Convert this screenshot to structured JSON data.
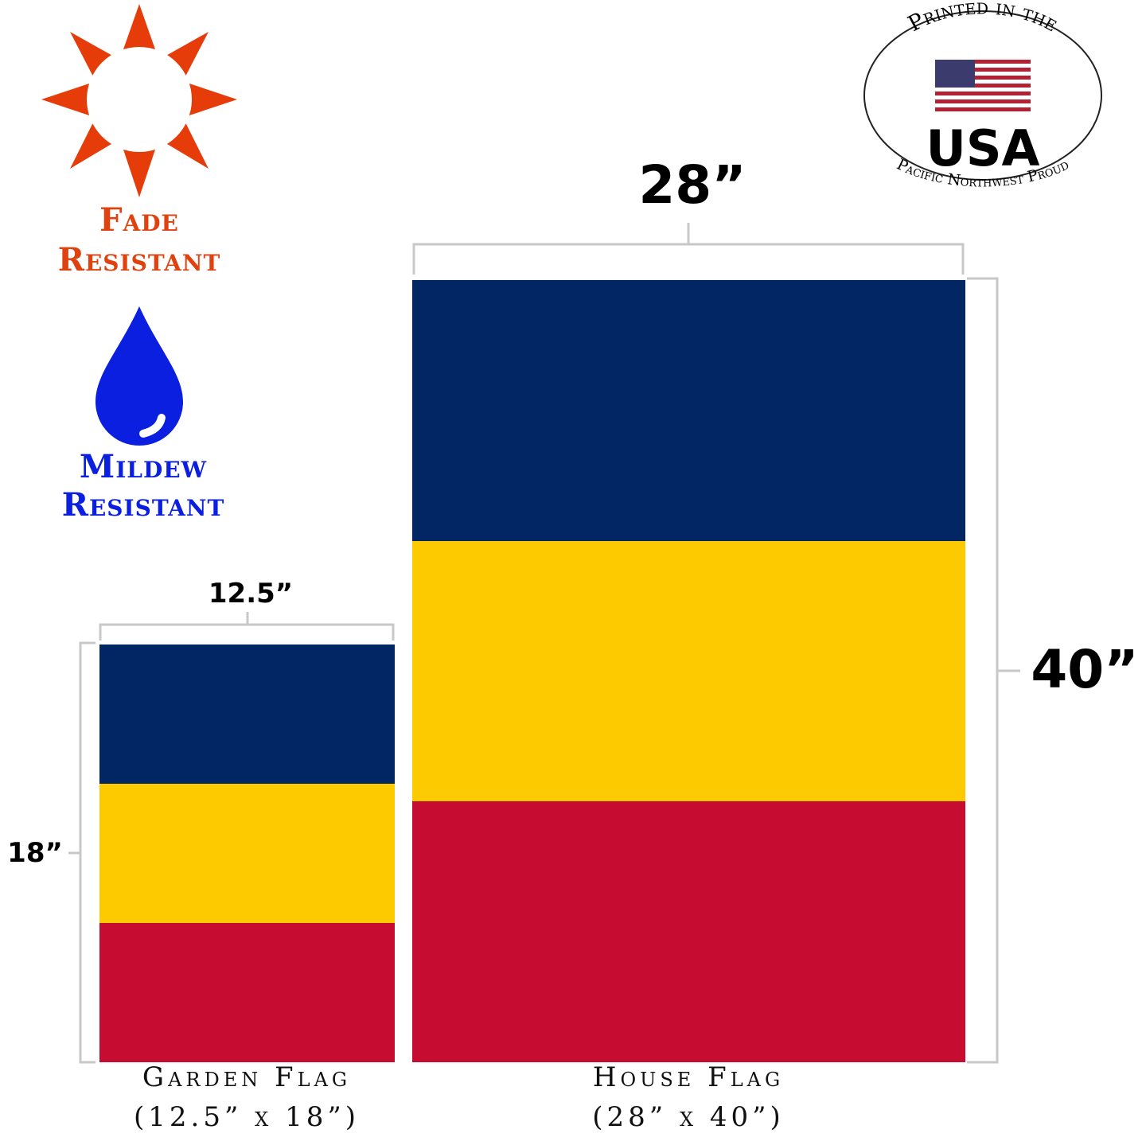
{
  "features": [
    {
      "line1": "Fade",
      "line2": "Resistant"
    },
    {
      "line1": "Mildew",
      "line2": "Resistant"
    }
  ],
  "garden_flag": {
    "width_label": "12.5”",
    "height_label": "18”",
    "name": "Garden Flag",
    "size": "(12.5” x 18”)"
  },
  "house_flag": {
    "width_label": "28”",
    "height_label": "40”",
    "name": "House Flag",
    "size": "(28” x 40”)"
  },
  "seal": {
    "top": "Printed in the",
    "country": "USA",
    "bottom": "Pacific Northwest Proud"
  }
}
